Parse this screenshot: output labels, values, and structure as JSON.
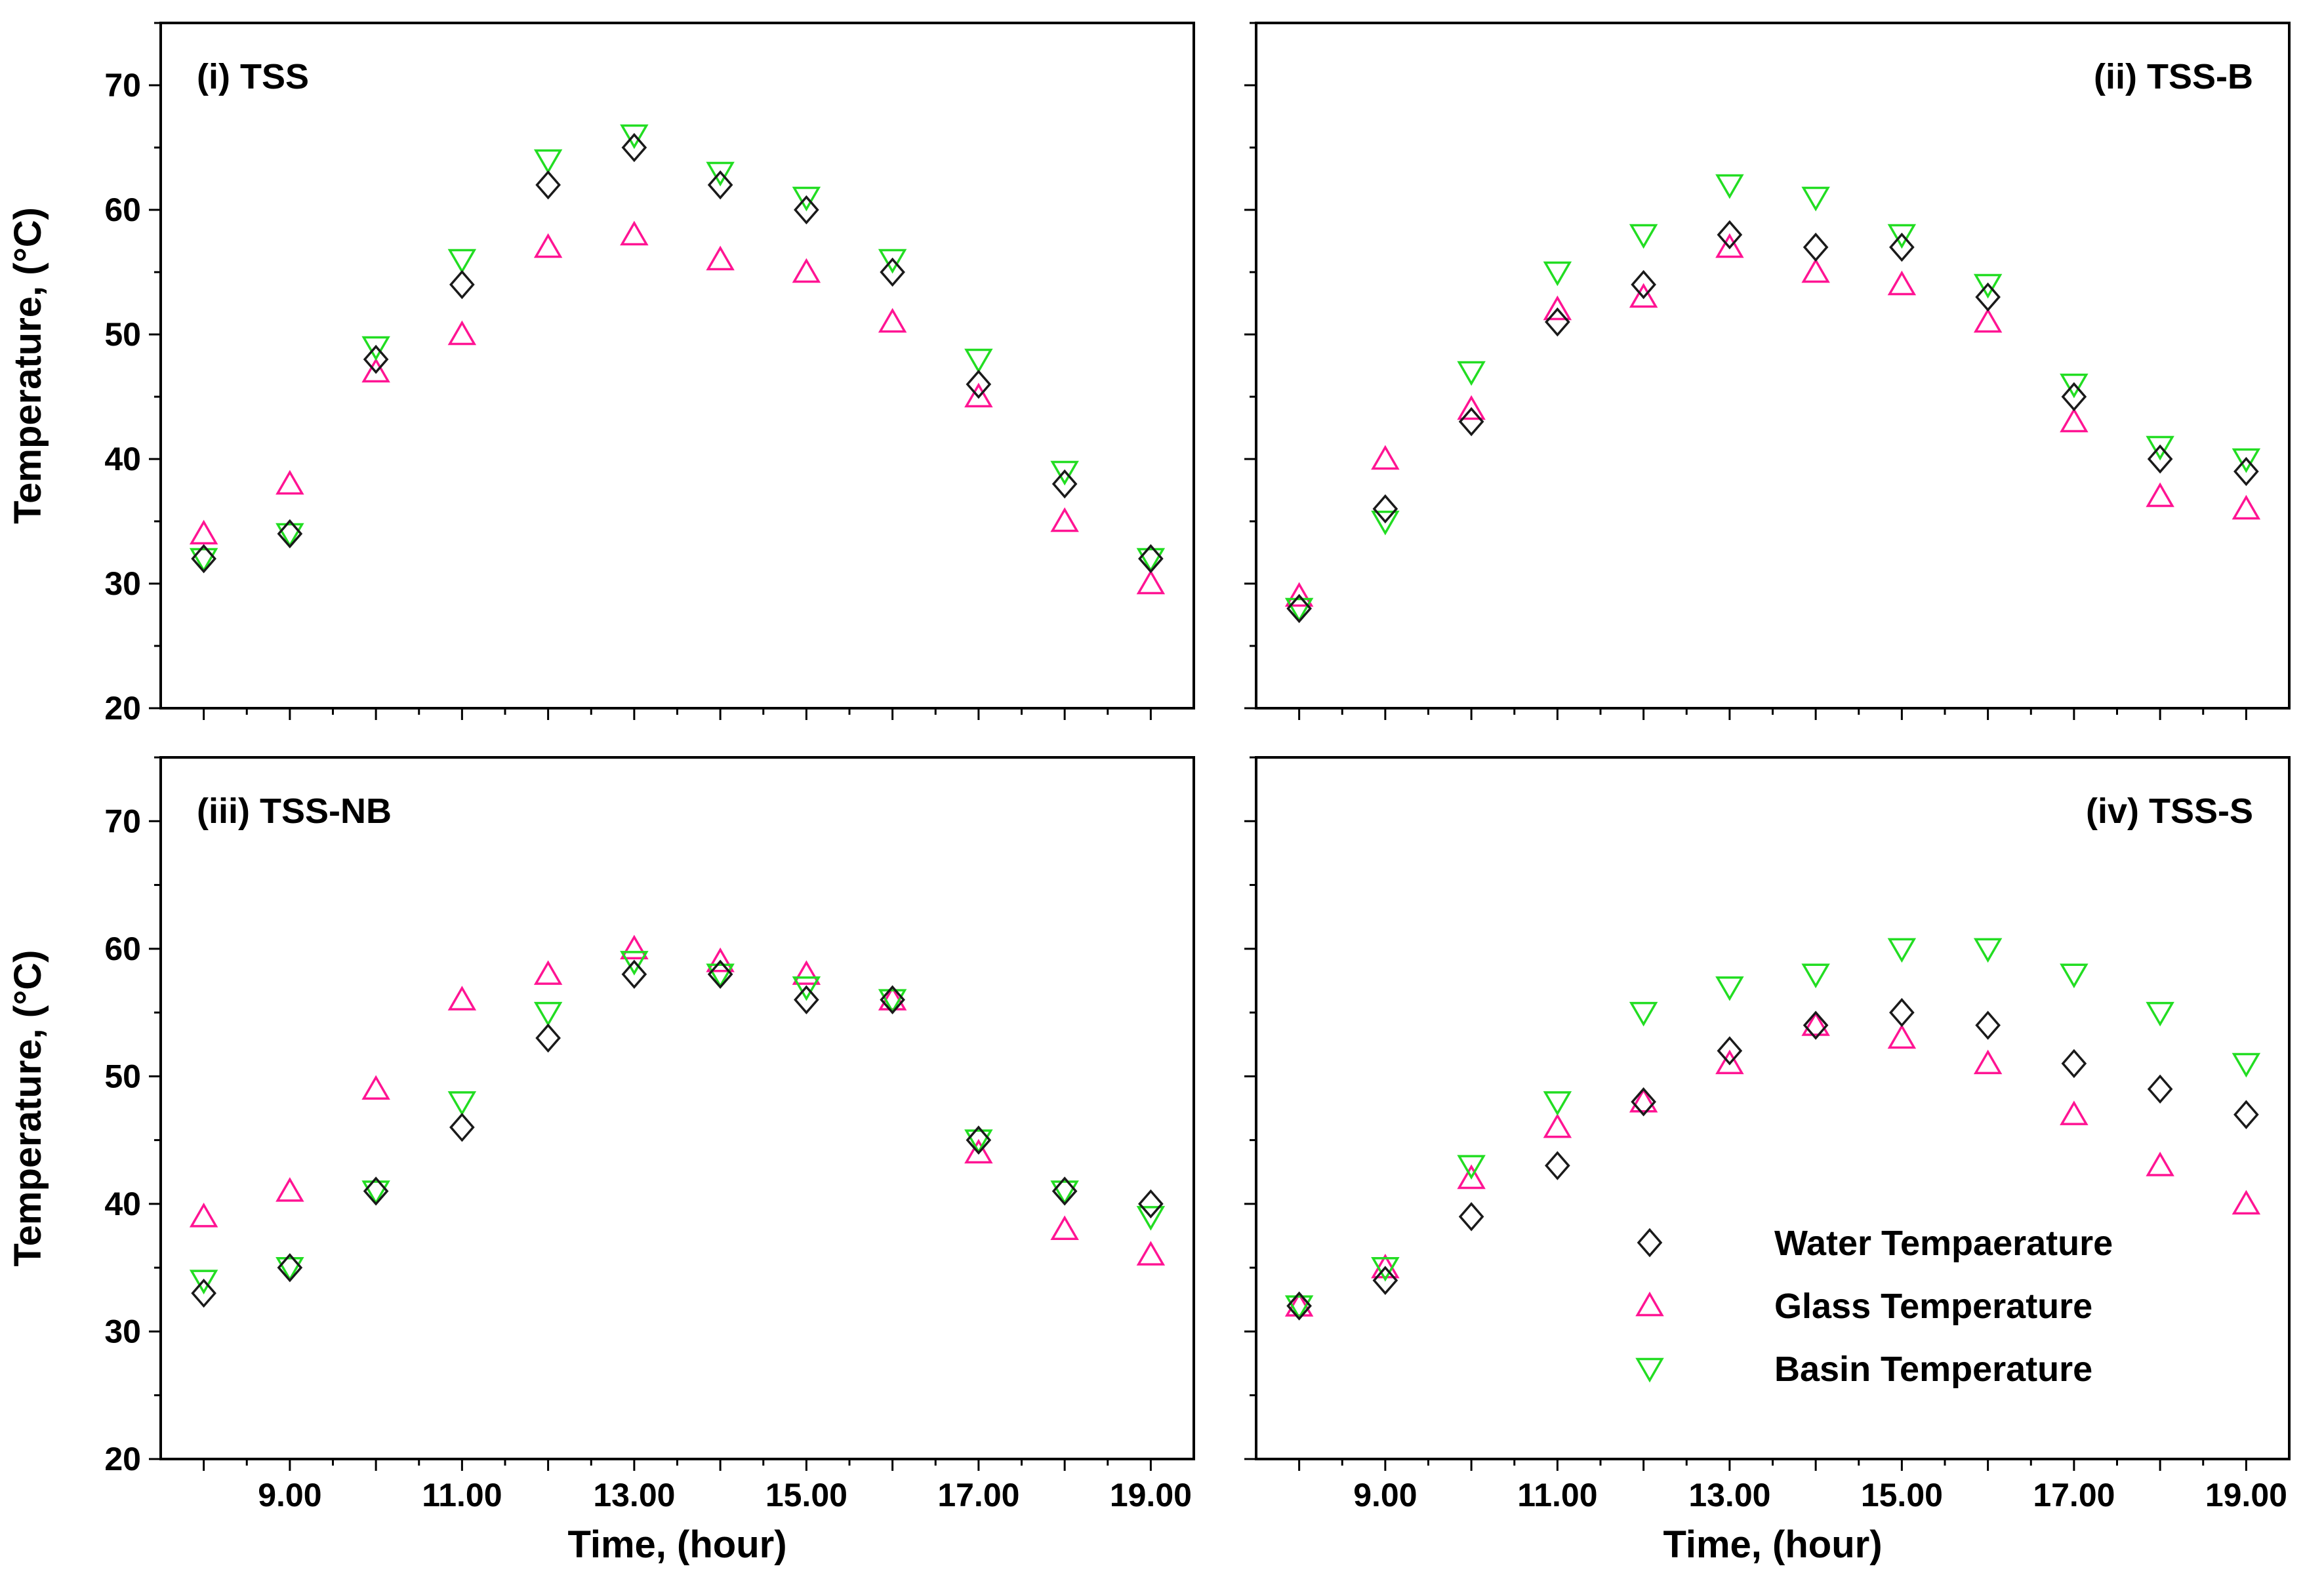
{
  "colors": {
    "water": "#1a1a1a",
    "glass": "#ff1493",
    "basin": "#22dd22",
    "axis": "#000000"
  },
  "legend": {
    "items": [
      {
        "key": "water",
        "marker": "diamond",
        "label": "Water Tempaerature"
      },
      {
        "key": "glass",
        "marker": "triangle-up",
        "label": "Glass Temperature"
      },
      {
        "key": "basin",
        "marker": "triangle-down",
        "label": "Basin Temperature"
      }
    ]
  },
  "chart_data": [
    {
      "type": "scatter",
      "panel_label": "(i)  TSS",
      "label_position": "top-left",
      "ylabel": "Temperature, (°C)",
      "xlabel": "",
      "ylim": [
        20,
        75
      ],
      "yticks": [
        20,
        30,
        40,
        50,
        60,
        70
      ],
      "xlim": [
        7.5,
        19.5
      ],
      "xtick_values": [
        9,
        11,
        13,
        15,
        17,
        19
      ],
      "xtick_labels": [
        "",
        "",
        "",
        "",
        "",
        ""
      ],
      "x": [
        8,
        9,
        10,
        11,
        12,
        13,
        14,
        15,
        16,
        17,
        18,
        19
      ],
      "series": [
        {
          "name": "Water Tempaerature",
          "key": "water",
          "marker": "diamond",
          "values": [
            32,
            34,
            48,
            54,
            62,
            65,
            62,
            60,
            55,
            46,
            38,
            32
          ]
        },
        {
          "name": "Glass Temperature",
          "key": "glass",
          "marker": "triangle-up",
          "values": [
            34,
            38,
            47,
            50,
            57,
            58,
            56,
            55,
            51,
            45,
            35,
            30
          ]
        },
        {
          "name": "Basin Temperature",
          "key": "basin",
          "marker": "triangle-down",
          "values": [
            32,
            34,
            49,
            56,
            64,
            66,
            63,
            61,
            56,
            48,
            39,
            32
          ]
        }
      ]
    },
    {
      "type": "scatter",
      "panel_label": "(ii)  TSS-B",
      "label_position": "top-right",
      "ylabel": "",
      "xlabel": "",
      "ylim": [
        20,
        75
      ],
      "yticks": [
        20,
        30,
        40,
        50,
        60,
        70
      ],
      "ytick_labels_visible": false,
      "xlim": [
        7.5,
        19.5
      ],
      "xtick_values": [
        9,
        11,
        13,
        15,
        17,
        19
      ],
      "xtick_labels": [
        "",
        "",
        "",
        "",
        "",
        ""
      ],
      "x": [
        8,
        9,
        10,
        11,
        12,
        13,
        14,
        15,
        16,
        17,
        18,
        19
      ],
      "series": [
        {
          "name": "Water Tempaerature",
          "key": "water",
          "marker": "diamond",
          "values": [
            28,
            36,
            43,
            51,
            54,
            58,
            57,
            57,
            53,
            45,
            40,
            39
          ]
        },
        {
          "name": "Glass Temperature",
          "key": "glass",
          "marker": "triangle-up",
          "values": [
            29,
            40,
            44,
            52,
            53,
            57,
            55,
            54,
            51,
            43,
            37,
            36
          ]
        },
        {
          "name": "Basin Temperature",
          "key": "basin",
          "marker": "triangle-down",
          "values": [
            28,
            35,
            47,
            55,
            58,
            62,
            61,
            58,
            54,
            46,
            41,
            40
          ]
        }
      ]
    },
    {
      "type": "scatter",
      "panel_label": "(iii)  TSS-NB",
      "label_position": "top-left",
      "ylabel": "Temperature, (°C)",
      "xlabel": "Time, (hour)",
      "ylim": [
        20,
        75
      ],
      "yticks": [
        20,
        30,
        40,
        50,
        60,
        70
      ],
      "xlim": [
        7.5,
        19.5
      ],
      "xtick_values": [
        9,
        11,
        13,
        15,
        17,
        19
      ],
      "xtick_labels": [
        "9.00",
        "11.00",
        "13.00",
        "15.00",
        "17.00",
        "19.00"
      ],
      "x": [
        8,
        9,
        10,
        11,
        12,
        13,
        14,
        15,
        16,
        17,
        18,
        19
      ],
      "series": [
        {
          "name": "Water Tempaerature",
          "key": "water",
          "marker": "diamond",
          "values": [
            33,
            35,
            41,
            46,
            53,
            58,
            58,
            56,
            56,
            45,
            41,
            40
          ]
        },
        {
          "name": "Glass Temperature",
          "key": "glass",
          "marker": "triangle-up",
          "values": [
            39,
            41,
            49,
            56,
            58,
            60,
            59,
            58,
            56,
            44,
            38,
            36
          ]
        },
        {
          "name": "Basin Temperature",
          "key": "basin",
          "marker": "triangle-down",
          "values": [
            34,
            35,
            41,
            48,
            55,
            59,
            58,
            57,
            56,
            45,
            41,
            39
          ]
        }
      ]
    },
    {
      "type": "scatter",
      "panel_label": "(iv)  TSS-S",
      "label_position": "top-right",
      "ylabel": "",
      "xlabel": "Time, (hour)",
      "ylim": [
        20,
        75
      ],
      "yticks": [
        20,
        30,
        40,
        50,
        60,
        70
      ],
      "ytick_labels_visible": false,
      "xlim": [
        7.5,
        19.5
      ],
      "xtick_values": [
        9,
        11,
        13,
        15,
        17,
        19
      ],
      "xtick_labels": [
        "9.00",
        "11.00",
        "13.00",
        "15.00",
        "17.00",
        "19.00"
      ],
      "x": [
        8,
        9,
        10,
        11,
        12,
        13,
        14,
        15,
        16,
        17,
        18,
        19
      ],
      "legend": "bottom-right",
      "series": [
        {
          "name": "Water Tempaerature",
          "key": "water",
          "marker": "diamond",
          "values": [
            32,
            34,
            39,
            43,
            48,
            52,
            54,
            55,
            54,
            51,
            49,
            47
          ]
        },
        {
          "name": "Glass Temperature",
          "key": "glass",
          "marker": "triangle-up",
          "values": [
            32,
            35,
            42,
            46,
            48,
            51,
            54,
            53,
            51,
            47,
            43,
            40
          ]
        },
        {
          "name": "Basin Temperature",
          "key": "basin",
          "marker": "triangle-down",
          "values": [
            32,
            35,
            43,
            48,
            55,
            57,
            58,
            60,
            60,
            58,
            55,
            51
          ]
        }
      ]
    }
  ]
}
